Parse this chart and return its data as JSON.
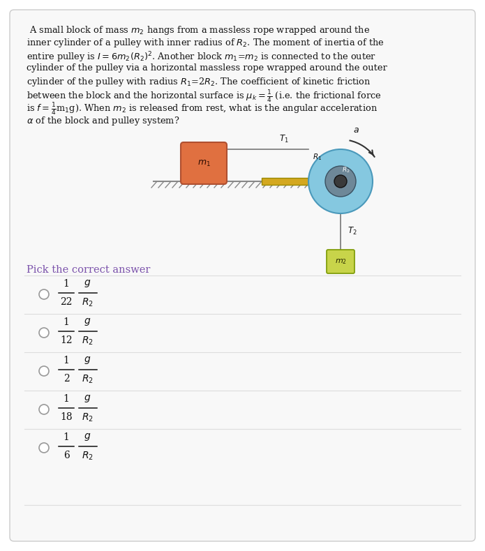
{
  "bg_color": "#ffffff",
  "card_bg": "#f8f8f8",
  "card_edge": "#cccccc",
  "title_lines": [
    " A small block of mass $m_2$ hangs from a massless rope wrapped around the",
    "inner cylinder of a pulley with inner radius of $R_2$. The moment of inertia of the",
    "entire pulley is $I = 6m_2(R_2)^2$. Another block $m_1$=$m_2$ is connected to the outer",
    "cylinder of the pulley via a horizontal massless rope wrapped around the outer",
    "cylinder of the pulley with radius $R_1$=2$R_2$. The coefficient of kinetic friction",
    "between the block and the horizontal surface is $\\mu_k = \\frac{1}{4}$ (i.e. the frictional force",
    "is $f = \\frac{1}{4}$m$_1$g). When $m_2$ is released from rest, what is the angular acceleration",
    "$\\alpha$ of the block and pulley system?"
  ],
  "pick_text": "Pick the correct answer",
  "pick_color": "#7B52AB",
  "answer_denoms": [
    "22",
    "12",
    "2",
    "18",
    "6"
  ],
  "m1_color": "#E07040",
  "m2_color": "#C8D44A",
  "axle_color": "#D4A820",
  "pulley_outer_color": "#85C8E0",
  "pulley_inner_color": "#6E8898",
  "pulley_center_color": "#3A3A3A",
  "rope_color": "#777777",
  "hatch_color": "#888888",
  "surface_color": "#888888",
  "text_color": "#111111",
  "arrow_color": "#333333"
}
